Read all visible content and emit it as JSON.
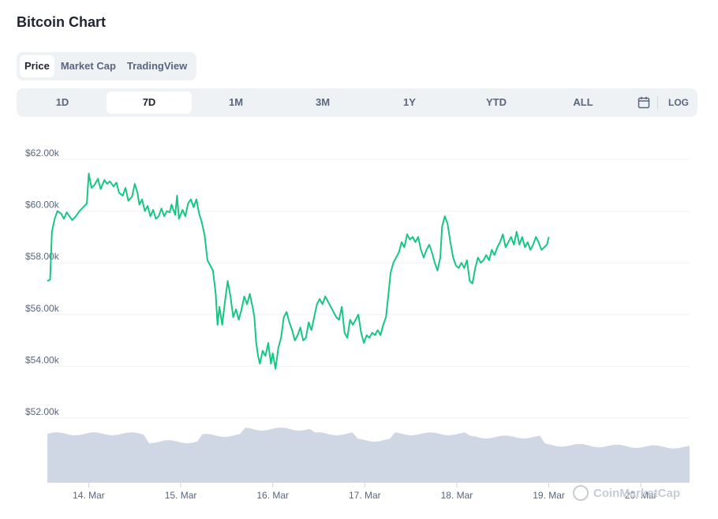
{
  "header": {
    "title": "Bitcoin Chart"
  },
  "type_tabs": [
    {
      "label": "Price",
      "active": true
    },
    {
      "label": "Market Cap",
      "active": false
    },
    {
      "label": "TradingView",
      "active": false
    }
  ],
  "range_tabs": [
    {
      "label": "1D",
      "active": false
    },
    {
      "label": "7D",
      "active": true
    },
    {
      "label": "1M",
      "active": false
    },
    {
      "label": "3M",
      "active": false
    },
    {
      "label": "1Y",
      "active": false
    },
    {
      "label": "YTD",
      "active": false
    },
    {
      "label": "ALL",
      "active": false
    }
  ],
  "calendar_icon": "calendar-icon",
  "log_label": "LOG",
  "watermark": "CoinMarketCap",
  "colors": {
    "line": "#16c784",
    "volume": "#cfd6e4",
    "grid": "#eff2f5",
    "axis_text": "#58667e"
  },
  "chart_data": {
    "type": "line",
    "title": "",
    "xlabel": "",
    "ylabel": "",
    "y_ticks": [
      "$52.00k",
      "$54.00k",
      "$56.00k",
      "$58.00k",
      "$60.00k",
      "$62.00k"
    ],
    "y_tick_values": [
      52000,
      54000,
      56000,
      58000,
      60000,
      62000
    ],
    "ylim": [
      49500,
      62000
    ],
    "x_ticks": [
      "14. Mar",
      "15. Mar",
      "16. Mar",
      "17. Mar",
      "18. Mar",
      "19. Mar",
      "20. Mar"
    ],
    "x_tick_values": [
      14,
      15,
      16,
      17,
      18,
      19,
      20
    ],
    "xlim": [
      13.55,
      20.53
    ],
    "grid": true,
    "series": [
      {
        "values": [
          [
            13.55,
            57300
          ],
          [
            13.58,
            57350
          ],
          [
            13.6,
            59200
          ],
          [
            13.63,
            59700
          ],
          [
            13.66,
            60000
          ],
          [
            13.7,
            59900
          ],
          [
            13.73,
            59700
          ],
          [
            13.76,
            59950
          ],
          [
            13.79,
            59800
          ],
          [
            13.82,
            59650
          ],
          [
            13.86,
            59800
          ],
          [
            13.9,
            60000
          ],
          [
            13.94,
            60150
          ],
          [
            13.98,
            60300
          ],
          [
            14.0,
            61450
          ],
          [
            14.03,
            60900
          ],
          [
            14.06,
            61000
          ],
          [
            14.1,
            61250
          ],
          [
            14.13,
            60850
          ],
          [
            14.17,
            61200
          ],
          [
            14.2,
            61050
          ],
          [
            14.23,
            61150
          ],
          [
            14.27,
            60950
          ],
          [
            14.3,
            61100
          ],
          [
            14.33,
            60700
          ],
          [
            14.37,
            60600
          ],
          [
            14.4,
            60900
          ],
          [
            14.43,
            60400
          ],
          [
            14.47,
            60550
          ],
          [
            14.5,
            61050
          ],
          [
            14.53,
            60700
          ],
          [
            14.55,
            60250
          ],
          [
            14.58,
            60450
          ],
          [
            14.61,
            60000
          ],
          [
            14.64,
            60200
          ],
          [
            14.67,
            59800
          ],
          [
            14.7,
            60050
          ],
          [
            14.73,
            59700
          ],
          [
            14.76,
            59800
          ],
          [
            14.79,
            60100
          ],
          [
            14.82,
            59800
          ],
          [
            14.85,
            60000
          ],
          [
            14.88,
            59950
          ],
          [
            14.9,
            60250
          ],
          [
            14.94,
            59850
          ],
          [
            14.96,
            60600
          ],
          [
            14.98,
            59700
          ],
          [
            15.02,
            60050
          ],
          [
            15.05,
            59800
          ],
          [
            15.08,
            60300
          ],
          [
            15.11,
            60450
          ],
          [
            15.14,
            60150
          ],
          [
            15.17,
            60450
          ],
          [
            15.2,
            59900
          ],
          [
            15.23,
            59550
          ],
          [
            15.26,
            59050
          ],
          [
            15.29,
            58100
          ],
          [
            15.32,
            57900
          ],
          [
            15.35,
            57700
          ],
          [
            15.38,
            56800
          ],
          [
            15.4,
            55600
          ],
          [
            15.42,
            56300
          ],
          [
            15.45,
            55600
          ],
          [
            15.48,
            56500
          ],
          [
            15.51,
            57300
          ],
          [
            15.54,
            56700
          ],
          [
            15.57,
            55900
          ],
          [
            15.6,
            56200
          ],
          [
            15.63,
            55800
          ],
          [
            15.66,
            56200
          ],
          [
            15.69,
            56700
          ],
          [
            15.72,
            56400
          ],
          [
            15.75,
            56800
          ],
          [
            15.78,
            56300
          ],
          [
            15.8,
            55900
          ],
          [
            15.82,
            54900
          ],
          [
            15.84,
            54400
          ],
          [
            15.86,
            54100
          ],
          [
            15.89,
            54600
          ],
          [
            15.92,
            54400
          ],
          [
            15.95,
            54900
          ],
          [
            15.98,
            54100
          ],
          [
            16.0,
            54500
          ],
          [
            16.03,
            53900
          ],
          [
            16.06,
            54700
          ],
          [
            16.09,
            55100
          ],
          [
            16.12,
            55900
          ],
          [
            16.15,
            56100
          ],
          [
            16.18,
            55700
          ],
          [
            16.21,
            55400
          ],
          [
            16.24,
            55000
          ],
          [
            16.27,
            55200
          ],
          [
            16.3,
            55500
          ],
          [
            16.33,
            55000
          ],
          [
            16.36,
            55100
          ],
          [
            16.39,
            55700
          ],
          [
            16.42,
            55400
          ],
          [
            16.45,
            55900
          ],
          [
            16.48,
            56400
          ],
          [
            16.51,
            56600
          ],
          [
            16.54,
            56400
          ],
          [
            16.57,
            56700
          ],
          [
            16.6,
            56500
          ],
          [
            16.63,
            56300
          ],
          [
            16.66,
            56100
          ],
          [
            16.69,
            55900
          ],
          [
            16.72,
            55800
          ],
          [
            16.75,
            56300
          ],
          [
            16.78,
            55300
          ],
          [
            16.81,
            55100
          ],
          [
            16.84,
            55800
          ],
          [
            16.87,
            55600
          ],
          [
            16.9,
            55800
          ],
          [
            16.93,
            56000
          ],
          [
            16.96,
            55300
          ],
          [
            16.99,
            54900
          ],
          [
            17.02,
            55200
          ],
          [
            17.05,
            55100
          ],
          [
            17.08,
            55300
          ],
          [
            17.11,
            55200
          ],
          [
            17.14,
            55400
          ],
          [
            17.17,
            55200
          ],
          [
            17.2,
            55600
          ],
          [
            17.23,
            55900
          ],
          [
            17.26,
            56900
          ],
          [
            17.28,
            57600
          ],
          [
            17.31,
            58000
          ],
          [
            17.34,
            58200
          ],
          [
            17.37,
            58400
          ],
          [
            17.4,
            58800
          ],
          [
            17.43,
            58600
          ],
          [
            17.46,
            59100
          ],
          [
            17.49,
            58900
          ],
          [
            17.52,
            59000
          ],
          [
            17.55,
            58800
          ],
          [
            17.58,
            59000
          ],
          [
            17.61,
            58500
          ],
          [
            17.64,
            58200
          ],
          [
            17.67,
            58500
          ],
          [
            17.7,
            58700
          ],
          [
            17.73,
            58400
          ],
          [
            17.76,
            58000
          ],
          [
            17.79,
            57700
          ],
          [
            17.82,
            58200
          ],
          [
            17.84,
            59400
          ],
          [
            17.87,
            59800
          ],
          [
            17.9,
            59500
          ],
          [
            17.93,
            58800
          ],
          [
            17.96,
            58200
          ],
          [
            17.99,
            57900
          ],
          [
            18.02,
            57800
          ],
          [
            18.05,
            58000
          ],
          [
            18.08,
            57800
          ],
          [
            18.11,
            58100
          ],
          [
            18.14,
            57300
          ],
          [
            18.17,
            57200
          ],
          [
            18.2,
            57800
          ],
          [
            18.23,
            58200
          ],
          [
            18.26,
            58000
          ],
          [
            18.29,
            58100
          ],
          [
            18.32,
            58300
          ],
          [
            18.35,
            58100
          ],
          [
            18.38,
            58500
          ],
          [
            18.41,
            58300
          ],
          [
            18.44,
            58600
          ],
          [
            18.47,
            58800
          ],
          [
            18.5,
            59100
          ],
          [
            18.53,
            58600
          ],
          [
            18.56,
            58800
          ],
          [
            18.59,
            59000
          ],
          [
            18.62,
            58700
          ],
          [
            18.65,
            59200
          ],
          [
            18.68,
            58700
          ],
          [
            18.71,
            59000
          ],
          [
            18.74,
            58600
          ],
          [
            18.77,
            58800
          ],
          [
            18.8,
            58500
          ],
          [
            18.83,
            58700
          ],
          [
            18.86,
            59000
          ],
          [
            18.89,
            58800
          ],
          [
            18.92,
            58500
          ],
          [
            18.95,
            58600
          ],
          [
            18.98,
            58700
          ],
          [
            19.0,
            59000
          ]
        ]
      }
    ],
    "volume": {
      "type": "area",
      "label": "volume"
    }
  }
}
